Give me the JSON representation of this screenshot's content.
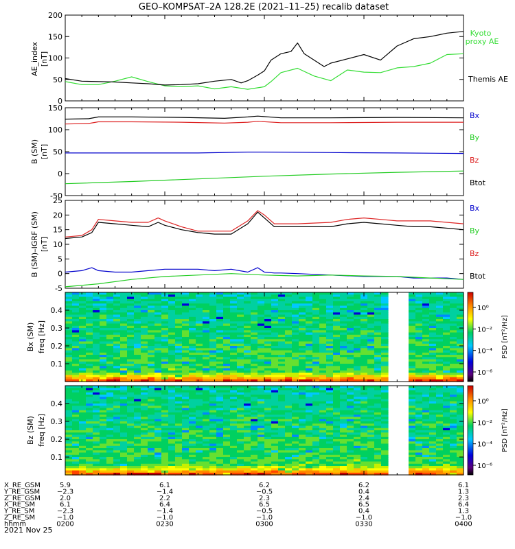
{
  "title": "GEO–KOMPSAT–2A 128.2E (2021–11–25) recalib dataset",
  "colors": {
    "ae_themis": "#000000",
    "ae_kyoto": "#33dd33",
    "bx": "#0000cc",
    "by": "#22cc22",
    "bz": "#dd2222",
    "btot": "#000000"
  },
  "chart_data": [
    {
      "type": "line",
      "title": "GEO–KOMPSAT–2A 128.2E (2021–11–25) recalib dataset",
      "ylabel": "AE_index [nT]",
      "ylabel_line1": "AE_index",
      "ylabel_line2": "[nT]",
      "ylim": [
        0,
        200
      ],
      "yticks": [
        0,
        50,
        100,
        150,
        200
      ],
      "xlim_minutes": [
        0,
        120
      ],
      "series": [
        {
          "name": "Kyoto proxy AE",
          "label_line1": "Kyoto",
          "label_line2": "proxy AE",
          "color_key": "ae_kyoto",
          "x": [
            0,
            5,
            10,
            15,
            20,
            25,
            30,
            35,
            40,
            45,
            50,
            55,
            60,
            62,
            65,
            70,
            75,
            80,
            85,
            90,
            95,
            100,
            105,
            110,
            115,
            120
          ],
          "y": [
            45,
            38,
            38,
            46,
            56,
            45,
            35,
            33,
            35,
            28,
            33,
            27,
            33,
            45,
            66,
            76,
            58,
            47,
            72,
            67,
            66,
            77,
            80,
            88,
            108,
            110
          ]
        },
        {
          "name": "Themis AE",
          "label_line1": "Themis AE",
          "color_key": "ae_themis",
          "x": [
            0,
            5,
            10,
            15,
            20,
            25,
            30,
            35,
            40,
            45,
            50,
            53,
            55,
            58,
            60,
            62,
            65,
            68,
            70,
            72,
            75,
            78,
            80,
            85,
            90,
            95,
            100,
            105,
            110,
            115,
            120
          ],
          "y": [
            52,
            46,
            45,
            44,
            42,
            40,
            37,
            38,
            40,
            46,
            50,
            42,
            47,
            60,
            70,
            95,
            110,
            115,
            135,
            110,
            95,
            80,
            88,
            98,
            108,
            95,
            128,
            145,
            150,
            158,
            162
          ]
        }
      ]
    },
    {
      "type": "line",
      "ylabel": "B (SM) [nT]",
      "ylabel_line1": "B (SM)",
      "ylabel_line2": "[nT]",
      "ylim": [
        -50,
        150
      ],
      "yticks": [
        -50,
        0,
        50,
        100,
        150
      ],
      "xlim_minutes": [
        0,
        120
      ],
      "series": [
        {
          "name": "Bx",
          "color_key": "bx",
          "x": [
            0,
            20,
            40,
            55,
            60,
            80,
            100,
            120
          ],
          "y": [
            47,
            47,
            47,
            49,
            49,
            48,
            47,
            46
          ]
        },
        {
          "name": "By",
          "color_key": "by",
          "x": [
            0,
            20,
            40,
            60,
            80,
            100,
            120
          ],
          "y": [
            -23,
            -18,
            -12,
            -6,
            -1,
            3,
            6
          ]
        },
        {
          "name": "Bz",
          "color_key": "bz",
          "x": [
            0,
            7,
            10,
            20,
            35,
            48,
            55,
            58,
            65,
            80,
            100,
            120
          ],
          "y": [
            113,
            114,
            118,
            118,
            117,
            115,
            117,
            119,
            116,
            116,
            117,
            117
          ]
        },
        {
          "name": "Btot",
          "color_key": "btot",
          "x": [
            0,
            7,
            10,
            20,
            35,
            48,
            55,
            58,
            65,
            80,
            100,
            120
          ],
          "y": [
            124,
            125,
            129,
            129,
            128,
            126,
            129,
            131,
            127,
            127,
            128,
            127
          ]
        }
      ]
    },
    {
      "type": "line",
      "ylabel": "B (SM)–IGRF (SM) [nT]",
      "ylabel_line1": "B (SM)–IGRF (SM)",
      "ylabel_line2": "[nT]",
      "ylim": [
        -5,
        25
      ],
      "yticks": [
        -5,
        0,
        5,
        10,
        15,
        20,
        25
      ],
      "xlim_minutes": [
        0,
        120
      ],
      "series": [
        {
          "name": "Bx",
          "color_key": "bx",
          "x": [
            0,
            5,
            8,
            10,
            15,
            20,
            25,
            30,
            35,
            40,
            45,
            50,
            55,
            58,
            60,
            63,
            65,
            70,
            80,
            90,
            100,
            105,
            110,
            115,
            120
          ],
          "y": [
            0.5,
            1,
            2.0,
            1,
            0.5,
            0.5,
            1,
            1.5,
            1.5,
            1.5,
            1,
            1.5,
            0.5,
            2.0,
            0.5,
            0.2,
            0.2,
            0,
            -0.5,
            -1,
            -1,
            -1.5,
            -1.5,
            -1.5,
            -2
          ]
        },
        {
          "name": "By",
          "color_key": "by",
          "x": [
            0,
            10,
            20,
            30,
            40,
            50,
            60,
            70,
            80,
            90,
            100,
            110,
            120
          ],
          "y": [
            -4.5,
            -3.5,
            -2,
            -1,
            -0.5,
            0,
            -0.5,
            -0.8,
            -0.5,
            -0.8,
            -1,
            -1.5,
            -2
          ]
        },
        {
          "name": "Bz",
          "color_key": "bz",
          "x": [
            0,
            5,
            8,
            10,
            15,
            20,
            25,
            28,
            30,
            35,
            40,
            45,
            50,
            55,
            58,
            60,
            63,
            65,
            70,
            80,
            85,
            90,
            95,
            100,
            105,
            110,
            115,
            120
          ],
          "y": [
            12.5,
            13,
            15,
            18.5,
            18,
            17.5,
            17.5,
            19,
            18,
            16,
            14.5,
            14.5,
            14.5,
            18,
            21.5,
            20,
            17,
            17,
            17,
            17.5,
            18.5,
            19,
            18.5,
            18,
            18,
            18,
            17.5,
            17
          ]
        },
        {
          "name": "Btot",
          "color_key": "btot",
          "x": [
            0,
            5,
            8,
            10,
            15,
            20,
            25,
            28,
            30,
            35,
            40,
            45,
            50,
            55,
            58,
            60,
            63,
            65,
            70,
            80,
            85,
            90,
            95,
            100,
            105,
            110,
            115,
            120
          ],
          "y": [
            12,
            12.5,
            14,
            17.5,
            17,
            16.5,
            16,
            17.5,
            16.5,
            15,
            14,
            13.5,
            13.5,
            17,
            21,
            19,
            16,
            16,
            16,
            16,
            17,
            17.5,
            17,
            16.5,
            16,
            16,
            15.5,
            15
          ]
        }
      ]
    },
    {
      "type": "heatmap",
      "ylabel_line1": "Bx (SM)",
      "ylabel_line2": "freq [Hz]",
      "yticks": [
        0.1,
        0.2,
        0.3,
        0.4
      ],
      "ylim": [
        0,
        0.5
      ],
      "colorbar_label": "PSD [nT²/Hz]",
      "colorbar_ticks": [
        "10⁰",
        "10⁻²",
        "10⁻⁴",
        "10⁻⁶"
      ],
      "data_gap_minutes": [
        98,
        102
      ]
    },
    {
      "type": "heatmap",
      "ylabel_line1": "Bz (SM)",
      "ylabel_line2": "freq [Hz]",
      "yticks": [
        0.1,
        0.2,
        0.3,
        0.4
      ],
      "ylim": [
        0,
        0.5
      ],
      "colorbar_label": "PSD [nT²/Hz]",
      "colorbar_ticks": [
        "10⁰",
        "10⁻²",
        "10⁻⁴",
        "10⁻⁶"
      ],
      "data_gap_minutes": [
        98,
        102
      ]
    }
  ],
  "ephemeris": {
    "rows": [
      {
        "label": "X_RE_GSM",
        "values": [
          "5.9",
          "6.1",
          "6.2",
          "6.2",
          "6.1"
        ]
      },
      {
        "label": "Y_RE_GSM",
        "values": [
          "−2.3",
          "−1.4",
          "−0.5",
          "0.4",
          "1.3"
        ]
      },
      {
        "label": "Z_RE_GSM",
        "values": [
          "2.0",
          "2.2",
          "2.3",
          "2.4",
          "2.3"
        ]
      },
      {
        "label": "X_RE_SM",
        "values": [
          "6.1",
          "6.4",
          "6.5",
          "6.5",
          "6.4"
        ]
      },
      {
        "label": "Y_RE_SM",
        "values": [
          "−2.3",
          "−1.4",
          "−0.5",
          "0.4",
          "1.3"
        ]
      },
      {
        "label": "Z_RE_SM",
        "values": [
          "−1.0",
          "−1.0",
          "−1.0",
          "−1.0",
          "−1.0"
        ]
      },
      {
        "label": "hhmm",
        "values": [
          "0200",
          "0230",
          "0300",
          "0330",
          "0400"
        ]
      }
    ],
    "date": "2021 Nov 25"
  }
}
